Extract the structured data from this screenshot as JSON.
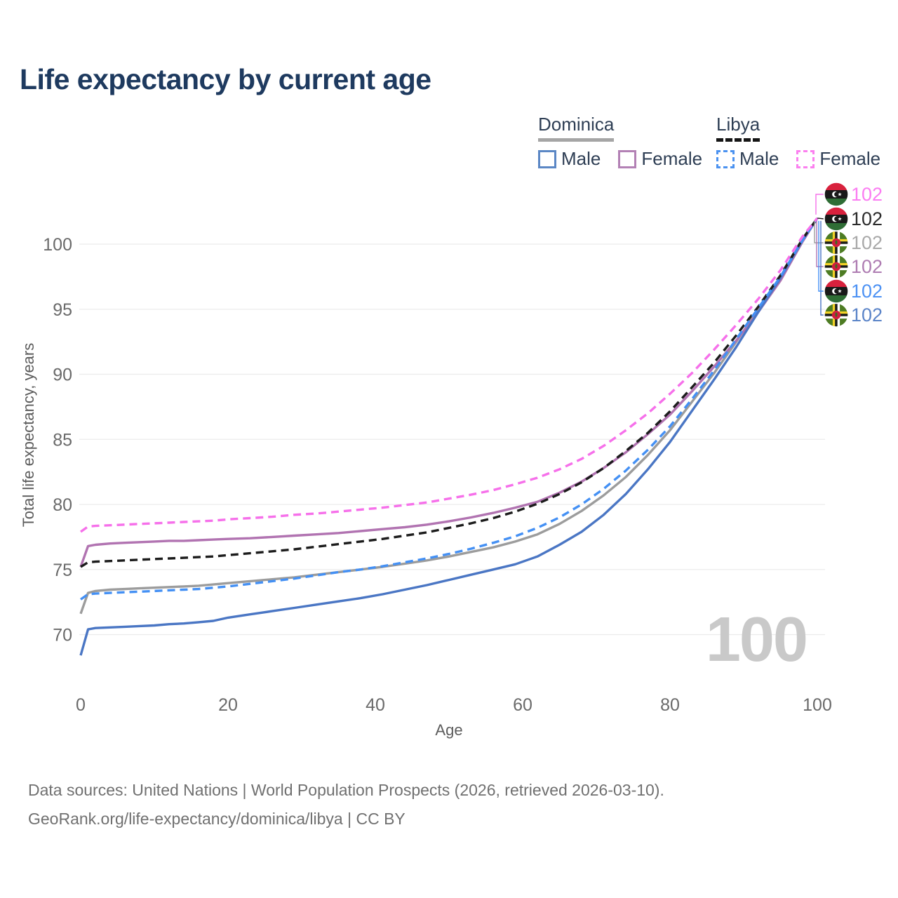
{
  "title": "Life expectancy by current age",
  "legend": {
    "dominica": {
      "title": "Dominica",
      "male": "Male",
      "female": "Female"
    },
    "libya": {
      "title": "Libya",
      "male": "Male",
      "female": "Female"
    }
  },
  "footer": {
    "line1": "Data sources: United Nations | World Population Prospects (2026, retrieved 2026-03-10).",
    "line2": "GeoRank.org/life-expectancy/dominica/libya | CC BY"
  },
  "chart_data": {
    "type": "line",
    "title": "Life expectancy by current age",
    "xlabel": "Age",
    "ylabel": "Total life expectancy, years",
    "x_ticks": [
      0,
      20,
      40,
      60,
      80,
      100
    ],
    "y_ticks": [
      70,
      75,
      80,
      85,
      90,
      95,
      100
    ],
    "xlim": [
      0,
      100
    ],
    "ylim": [
      68,
      103
    ],
    "grid": "horizontal",
    "legend_position": "top-right",
    "watermark": "100",
    "x": [
      0,
      1,
      2,
      4,
      6,
      8,
      10,
      12,
      14,
      16,
      18,
      20,
      23,
      26,
      29,
      32,
      35,
      38,
      41,
      44,
      47,
      50,
      53,
      56,
      59,
      62,
      65,
      68,
      71,
      74,
      77,
      80,
      83,
      86,
      89,
      92,
      95,
      98,
      100
    ],
    "series": [
      {
        "name": "Dominica All",
        "country": "Dominica",
        "sex": "all",
        "color": "#9c9c9c",
        "dashed": false,
        "flag": "dominica",
        "end_label": "102",
        "label_color": "#a9a9a9",
        "label_slot": 2,
        "y": [
          71.6,
          73.2,
          73.35,
          73.45,
          73.5,
          73.55,
          73.6,
          73.65,
          73.7,
          73.75,
          73.85,
          73.95,
          74.1,
          74.25,
          74.4,
          74.6,
          74.8,
          75.0,
          75.2,
          75.45,
          75.7,
          76.0,
          76.35,
          76.7,
          77.15,
          77.7,
          78.5,
          79.5,
          80.7,
          82.1,
          83.8,
          85.7,
          87.9,
          90.1,
          92.5,
          95.0,
          97.5,
          100.3,
          102
        ]
      },
      {
        "name": "Dominica Female",
        "country": "Dominica",
        "sex": "female",
        "color": "#b173b1",
        "dashed": false,
        "flag": "dominica",
        "end_label": "102",
        "label_color": "#ae7cb2",
        "label_slot": 3,
        "y": [
          75.2,
          76.8,
          76.9,
          77.0,
          77.05,
          77.1,
          77.15,
          77.2,
          77.2,
          77.25,
          77.3,
          77.35,
          77.4,
          77.5,
          77.6,
          77.7,
          77.8,
          77.95,
          78.1,
          78.25,
          78.45,
          78.7,
          79.0,
          79.35,
          79.75,
          80.2,
          80.9,
          81.75,
          82.8,
          84.0,
          85.4,
          86.9,
          88.7,
          90.6,
          92.6,
          94.8,
          97.2,
          100.2,
          102
        ]
      },
      {
        "name": "Dominica Male",
        "country": "Dominica",
        "sex": "male",
        "color": "#4a76c4",
        "dashed": false,
        "flag": "dominica",
        "end_label": "102",
        "label_color": "#5b84c8",
        "label_slot": 5,
        "y": [
          68.4,
          70.4,
          70.5,
          70.55,
          70.6,
          70.65,
          70.7,
          70.8,
          70.85,
          70.95,
          71.05,
          71.3,
          71.55,
          71.8,
          72.05,
          72.3,
          72.55,
          72.8,
          73.1,
          73.45,
          73.8,
          74.2,
          74.6,
          75.0,
          75.4,
          76.0,
          76.9,
          77.9,
          79.2,
          80.8,
          82.7,
          84.8,
          87.2,
          89.6,
          92.1,
          94.8,
          97.4,
          100.3,
          102
        ]
      },
      {
        "name": "Libya All",
        "country": "Libya",
        "sex": "all",
        "color": "#1c1c1c",
        "dashed": true,
        "flag": "libya",
        "end_label": "102",
        "label_color": "#2b2b2b",
        "label_slot": 1,
        "y": [
          75.2,
          75.55,
          75.6,
          75.65,
          75.7,
          75.75,
          75.8,
          75.85,
          75.9,
          75.95,
          76.0,
          76.1,
          76.25,
          76.4,
          76.55,
          76.75,
          76.95,
          77.15,
          77.35,
          77.6,
          77.85,
          78.2,
          78.55,
          78.95,
          79.45,
          80.05,
          80.8,
          81.7,
          82.8,
          84.1,
          85.5,
          87.15,
          89.0,
          90.9,
          93.0,
          95.2,
          97.6,
          100.4,
          102
        ]
      },
      {
        "name": "Libya Male",
        "country": "Libya",
        "sex": "male",
        "color": "#4490f4",
        "dashed": true,
        "flag": "libya",
        "end_label": "102",
        "label_color": "#4d92f4",
        "label_slot": 4,
        "y": [
          72.7,
          73.1,
          73.15,
          73.2,
          73.25,
          73.3,
          73.35,
          73.4,
          73.45,
          73.5,
          73.6,
          73.7,
          73.9,
          74.1,
          74.3,
          74.55,
          74.8,
          75.0,
          75.25,
          75.55,
          75.85,
          76.2,
          76.6,
          77.05,
          77.55,
          78.2,
          79.0,
          80.0,
          81.2,
          82.6,
          84.2,
          86.0,
          88.1,
          90.3,
          92.7,
          95.1,
          97.5,
          100.3,
          102
        ]
      },
      {
        "name": "Libya Female",
        "country": "Libya",
        "sex": "female",
        "color": "#f670ea",
        "dashed": true,
        "flag": "libya",
        "end_label": "102",
        "label_color": "#fb7df2",
        "label_slot": 0,
        "y": [
          77.9,
          78.3,
          78.35,
          78.4,
          78.45,
          78.5,
          78.55,
          78.6,
          78.65,
          78.7,
          78.75,
          78.85,
          78.95,
          79.05,
          79.2,
          79.3,
          79.45,
          79.6,
          79.75,
          79.95,
          80.15,
          80.45,
          80.75,
          81.1,
          81.55,
          82.05,
          82.7,
          83.5,
          84.5,
          85.7,
          87.0,
          88.5,
          90.1,
          91.9,
          93.8,
          95.8,
          98.0,
          100.6,
          102
        ]
      }
    ]
  }
}
